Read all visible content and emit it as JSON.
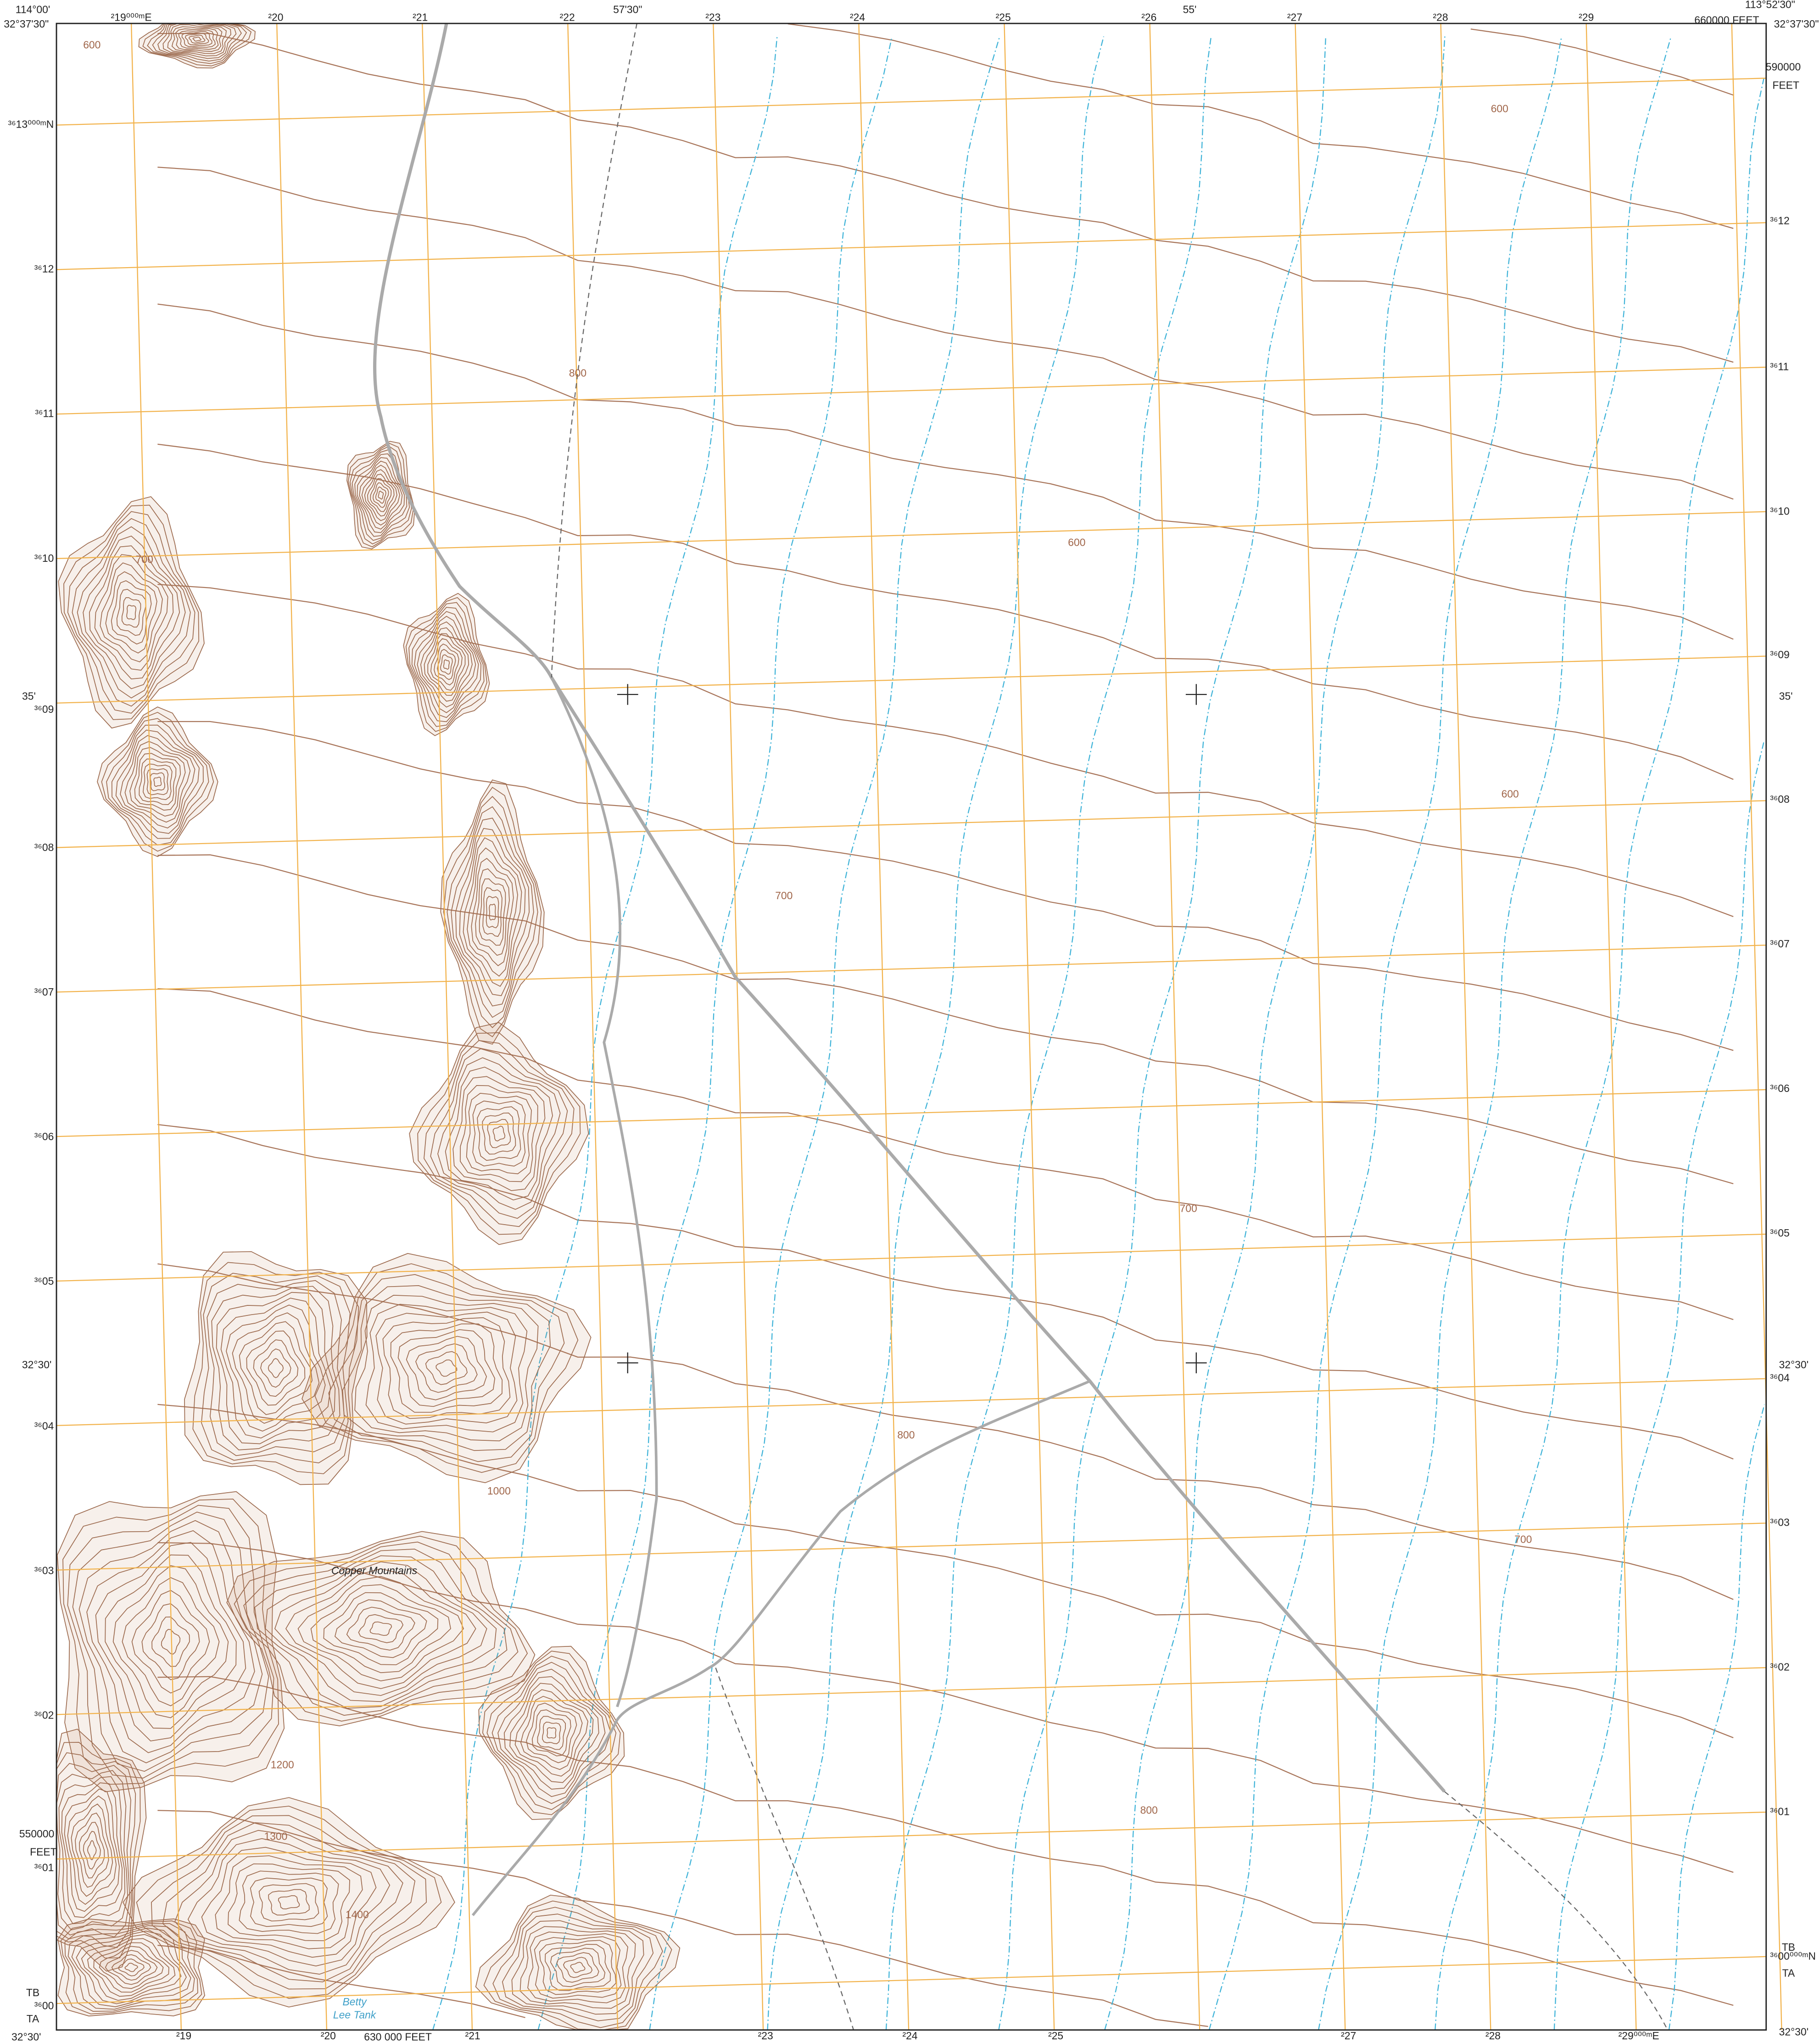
{
  "map": {
    "top_eastings": [
      "²19⁰⁰⁰ᵐE",
      "²20",
      "²21",
      "²22",
      "²23",
      "²24",
      "²25",
      "²26",
      "²27",
      "²28",
      "²29"
    ],
    "bottom_eastings": [
      "²19",
      "²20",
      "²21",
      "²23",
      "²24",
      "²25",
      "²27",
      "²28",
      "²29⁰⁰⁰ᵐE"
    ],
    "left_northings": [
      "³⁶13⁰⁰⁰ᵐN",
      "³⁶12",
      "³⁶11",
      "³⁶10",
      "³⁶09",
      "³⁶08",
      "³⁶07",
      "³⁶06",
      "³⁶05",
      "³⁶04",
      "³⁶03",
      "³⁶02",
      "³⁶01",
      "³⁶00"
    ],
    "right_northings": [
      "³⁶12",
      "³⁶11",
      "³⁶10",
      "³⁶09",
      "³⁶08",
      "³⁶07",
      "³⁶06",
      "³⁶05",
      "³⁶04",
      "³⁶03",
      "³⁶02",
      "³⁶01",
      "³⁶00⁰⁰⁰ᵐN"
    ],
    "margin": [
      "114°00'",
      "32°37'30\"",
      "57'30\"",
      "55'",
      "113°52'30\"",
      "660000 FEET",
      "32°37'30\"",
      "590000",
      "FEET",
      "35'",
      "35'",
      "32°30'",
      "32°30'",
      "550000",
      "FEET",
      "630 000 FEET",
      "TB",
      "TA",
      "TB",
      "TA",
      "32°30'",
      "32°30'"
    ],
    "features": [
      "Copper Mountains",
      "Betty",
      "Lee Tank"
    ],
    "contour_labels": [
      "600",
      "800",
      "600",
      "600",
      "700",
      "700",
      "800",
      "700",
      "800",
      "1000",
      "1200",
      "1300",
      "1400",
      "600",
      "700"
    ]
  }
}
